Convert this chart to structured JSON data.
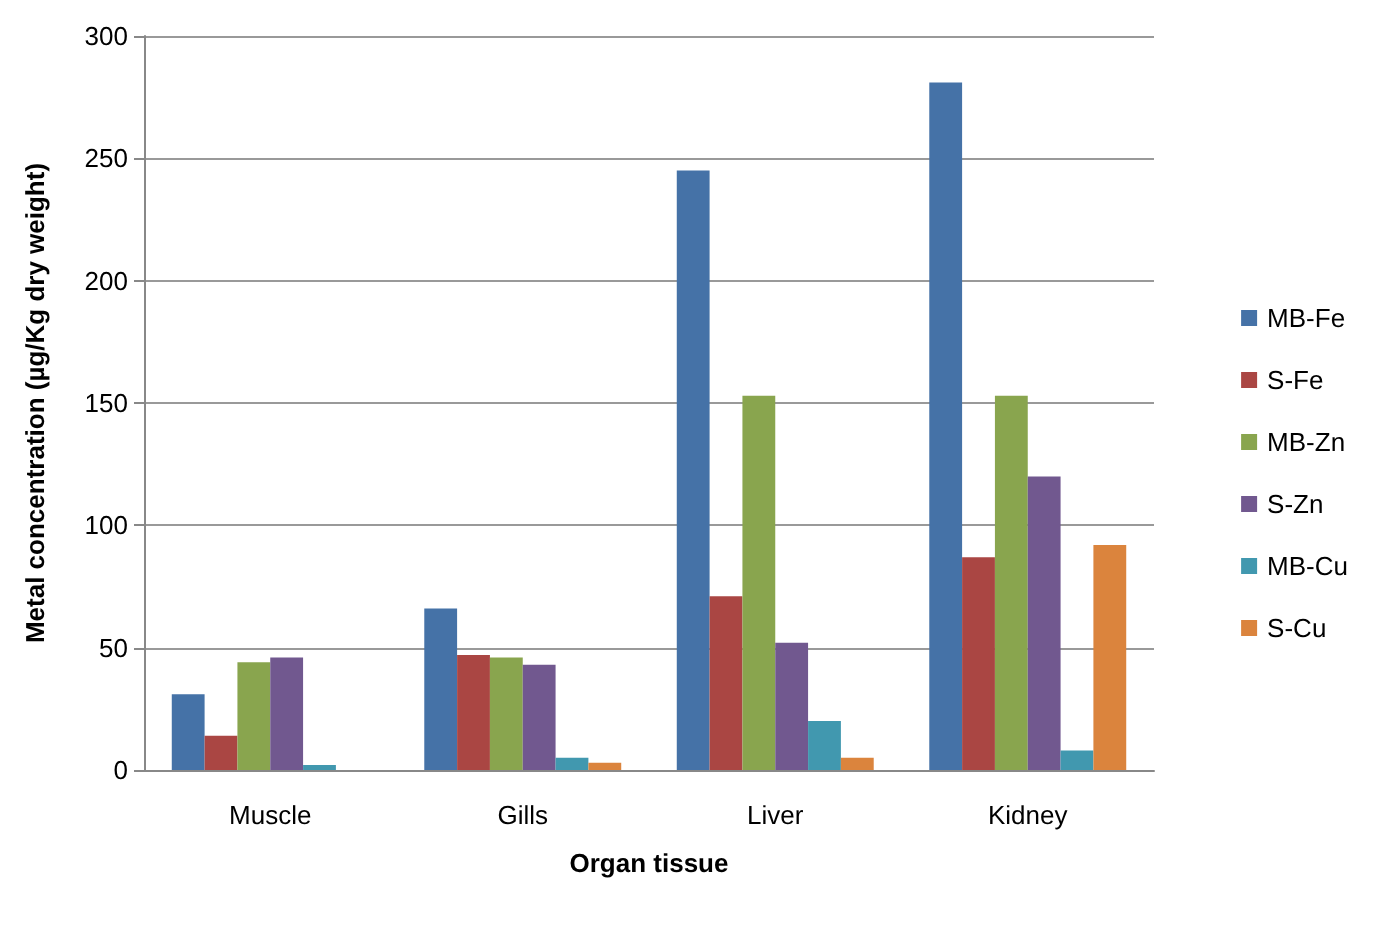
{
  "chart_data": {
    "type": "bar",
    "xlabel": "Organ tissue",
    "ylabel": "Metal concentration (µg/Kg dry weight)",
    "categories": [
      "Muscle",
      "Gills",
      "Liver",
      "Kidney"
    ],
    "series": [
      {
        "name": "MB-Fe",
        "color": "#4572a7",
        "values": [
          31,
          66,
          245,
          281
        ]
      },
      {
        "name": "S-Fe",
        "color": "#aa4643",
        "values": [
          14,
          47,
          71,
          87
        ]
      },
      {
        "name": "MB-Zn",
        "color": "#89a54e",
        "values": [
          44,
          46,
          153,
          153
        ]
      },
      {
        "name": "S-Zn",
        "color": "#71588f",
        "values": [
          46,
          43,
          52,
          120
        ]
      },
      {
        "name": "MB-Cu",
        "color": "#4198af",
        "values": [
          2,
          5,
          20,
          8
        ]
      },
      {
        "name": "S-Cu",
        "color": "#db843d",
        "values": [
          0,
          3,
          5,
          92
        ]
      }
    ],
    "ylim": [
      0,
      300
    ],
    "yticks": [
      0,
      50,
      100,
      150,
      200,
      250,
      300
    ],
    "grid": "y",
    "legend": "right"
  }
}
